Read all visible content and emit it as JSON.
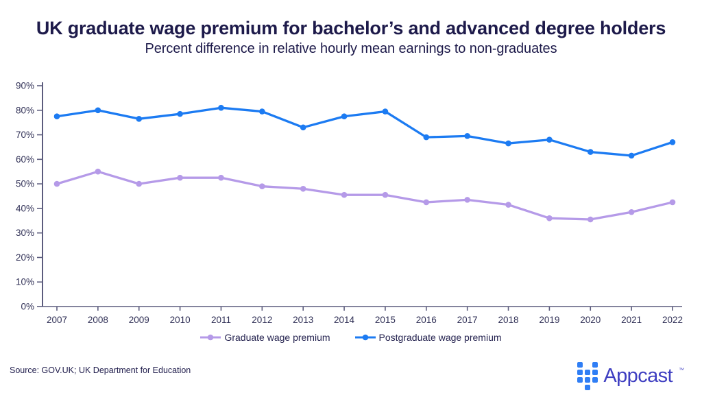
{
  "chart_data": {
    "type": "line",
    "title": "UK graduate wage premium for bachelor’s and advanced degree holders",
    "subtitle": "Percent difference in relative hourly mean earnings to non-graduates",
    "x": [
      2007,
      2008,
      2009,
      2010,
      2011,
      2012,
      2013,
      2014,
      2015,
      2016,
      2017,
      2018,
      2019,
      2020,
      2021,
      2022
    ],
    "series": [
      {
        "name": "Graduate wage premium",
        "color": "#b59ae8",
        "values": [
          50,
          55,
          50,
          52.5,
          52.5,
          49,
          48,
          45.5,
          45.5,
          42.5,
          43.5,
          41.5,
          36,
          35.5,
          38.5,
          42.5
        ]
      },
      {
        "name": "Postgraduate wage premium",
        "color": "#1c7bf2",
        "values": [
          77.5,
          80,
          76.5,
          78.5,
          81,
          79.5,
          73,
          77.5,
          79.5,
          69,
          69.5,
          66.5,
          68,
          63,
          61.5,
          67
        ]
      }
    ],
    "ylim": [
      0,
      90
    ],
    "ytick_step": 10,
    "ytick_suffix": "%",
    "grid": false,
    "legend_position": "bottom"
  },
  "footer": {
    "source": "Source: GOV.UK; UK Department for Education",
    "brand": {
      "name": "Appcast",
      "trademark": "™",
      "icon": "appcast-squares-icon"
    }
  },
  "colors": {
    "navy_text": "#1d1a4a",
    "axis_line": "#5c5c7d",
    "tick_label": "#2f2f55",
    "graduate_purple": "#b59ae8",
    "postgraduate_blue": "#1c7bf2",
    "brand_icon_blue": "#2f7ef5",
    "brand_wordmark_indigo": "#3e3ec1"
  }
}
